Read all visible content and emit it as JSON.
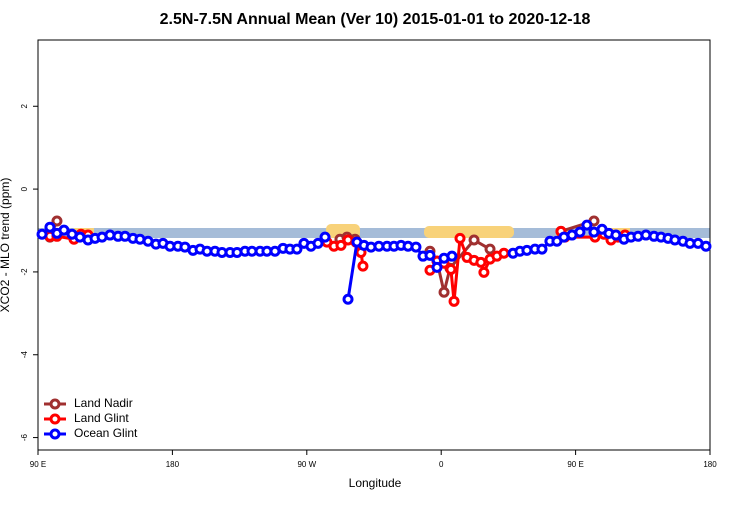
{
  "chart_data": {
    "type": "line",
    "title": "2.5N-7.5N Annual Mean (Ver 10)   2015-01-01 to 2020-12-18",
    "x_label": "Longitude",
    "y_label": "XCO2 - MLO trend (ppm)",
    "xlim": [
      90,
      540
    ],
    "ylim": [
      -6.3,
      3.6
    ],
    "xticks": [
      {
        "value": 90,
        "label": "90 E"
      },
      {
        "value": 180,
        "label": "180"
      },
      {
        "value": 270,
        "label": "90 W"
      },
      {
        "value": 360,
        "label": "0"
      },
      {
        "value": 450,
        "label": "90 E"
      },
      {
        "value": 540,
        "label": "180"
      }
    ],
    "yticks": [
      -6,
      -4,
      -2,
      0,
      2
    ],
    "legend": "bottom-left",
    "series": [
      {
        "name": "Land Nadir",
        "color": "#a03030",
        "x": [
          98.0,
          102.7,
          200,
          292.2,
          296.9,
          302.3,
          330,
          352.5,
          357.2,
          361.9,
          365.9,
          382.0,
          392.7,
          430,
          440.2,
          462.3
        ],
        "values": [
          -1.16,
          -0.77,
          null,
          -1.21,
          -1.16,
          -1.21,
          null,
          -1.5,
          -1.74,
          -2.49,
          -1.91,
          -1.23,
          -1.45,
          null,
          -1.02,
          -0.77
        ]
      },
      {
        "name": "Land Glint",
        "color": "#ff0000",
        "x": [
          98.0,
          102.7,
          114.1,
          118.8,
          123.5,
          200,
          283.5,
          288.2,
          292.9,
          297.6,
          302.9,
          306.3,
          307.6,
          330,
          352.5,
          357.2,
          361.9,
          366.5,
          368.6,
          372.6,
          377.3,
          382.0,
          386.6,
          388.6,
          392.7,
          397.3,
          402.0,
          430,
          440.2,
          442.9,
          463.0,
          469.0,
          473.7,
          478.4,
          483.1
        ],
        "values": [
          -1.14,
          -1.14,
          -1.21,
          -1.09,
          -1.11,
          null,
          -1.28,
          -1.38,
          -1.36,
          -1.23,
          -1.28,
          -1.53,
          -1.86,
          null,
          -1.96,
          -1.74,
          -1.79,
          -1.94,
          -2.71,
          -1.19,
          -1.65,
          -1.72,
          -1.77,
          -2.01,
          -1.69,
          -1.62,
          -1.55,
          null,
          -1.02,
          -1.16,
          -1.16,
          -1.09,
          -1.23,
          -1.16,
          -1.11
        ]
      },
      {
        "name": "Ocean Glint",
        "color": "#0000ff",
        "x": [
          92.7,
          98.0,
          102.7,
          107.4,
          112.8,
          118.1,
          123.5,
          128.2,
          132.9,
          138.2,
          143.6,
          148.3,
          153.6,
          158.3,
          163.7,
          169.0,
          173.7,
          178.4,
          183.7,
          188.4,
          193.8,
          198.5,
          203.2,
          208.5,
          213.2,
          218.6,
          223.3,
          228.6,
          233.3,
          238.7,
          243.3,
          248.7,
          254.1,
          258.7,
          263.4,
          268.1,
          272.8,
          277.5,
          282.2,
          290,
          297.6,
          303.6,
          308.3,
          313.0,
          318.3,
          323.7,
          328.4,
          333.1,
          337.8,
          343.1,
          347.8,
          352.5,
          357.2,
          361.9,
          367.2,
          390,
          408.1,
          412.7,
          417.4,
          422.8,
          427.5,
          432.8,
          437.5,
          442.2,
          447.6,
          452.9,
          457.6,
          462.3,
          467.7,
          472.3,
          477.0,
          482.4,
          487.1,
          491.8,
          497.1,
          502.5,
          507.2,
          511.9,
          516.5,
          521.9,
          526.6,
          532.0,
          537.3
        ],
        "values": [
          -1.09,
          -0.92,
          -1.07,
          -0.99,
          -1.09,
          -1.16,
          -1.23,
          -1.19,
          -1.16,
          -1.11,
          -1.14,
          -1.14,
          -1.19,
          -1.21,
          -1.26,
          -1.33,
          -1.31,
          -1.38,
          -1.38,
          -1.4,
          -1.48,
          -1.45,
          -1.5,
          -1.5,
          -1.53,
          -1.53,
          -1.53,
          -1.5,
          -1.5,
          -1.5,
          -1.5,
          -1.5,
          -1.43,
          -1.45,
          -1.45,
          -1.31,
          -1.38,
          -1.31,
          -1.16,
          null,
          -2.66,
          -1.28,
          -1.36,
          -1.4,
          -1.38,
          -1.38,
          -1.38,
          -1.36,
          -1.38,
          -1.4,
          -1.62,
          -1.6,
          -1.89,
          -1.67,
          -1.62,
          null,
          -1.55,
          -1.5,
          -1.48,
          -1.45,
          -1.45,
          -1.26,
          -1.26,
          -1.16,
          -1.11,
          -1.04,
          -0.87,
          -1.04,
          -0.97,
          -1.07,
          -1.11,
          -1.21,
          -1.16,
          -1.14,
          -1.11,
          -1.14,
          -1.16,
          -1.19,
          -1.23,
          -1.26,
          -1.31,
          -1.31,
          -1.38
        ]
      }
    ]
  }
}
